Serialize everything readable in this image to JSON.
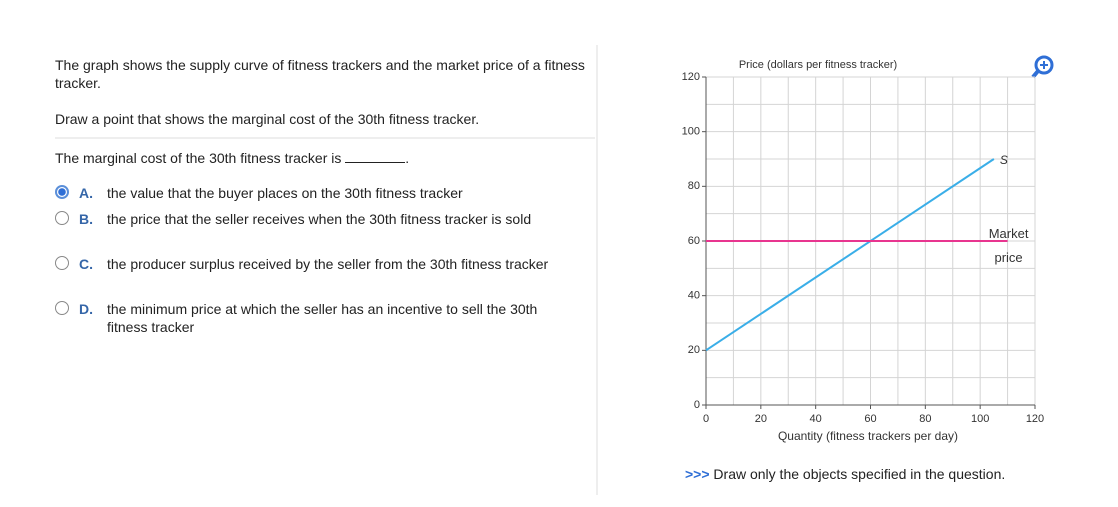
{
  "question": {
    "intro": "The graph shows the supply curve of fitness trackers and the market price of a fitness tracker.",
    "instruction": "Draw a point that shows the marginal cost of the 30th fitness tracker.",
    "prompt": "The marginal cost of the 30th fitness tracker is",
    "prompt_end": ".",
    "options": [
      {
        "letter": "A.",
        "text": "the value that the buyer places on the 30th fitness tracker",
        "selected": true
      },
      {
        "letter": "B.",
        "text": "the price that the seller receives when the 30th fitness tracker is sold",
        "selected": false
      },
      {
        "letter": "C.",
        "text": "the producer surplus received by the seller from the 30th fitness tracker",
        "selected": false
      },
      {
        "letter": "D.",
        "text": "the minimum price at which the seller has an incentive to sell the 30th fitness tracker",
        "selected": false
      }
    ]
  },
  "chart_data": {
    "type": "line",
    "y_label": "Price (dollars per fitness tracker)",
    "x_label": "Quantity (fitness trackers per day)",
    "xlim": [
      0,
      120
    ],
    "ylim": [
      0,
      120
    ],
    "xticks": [
      0,
      20,
      40,
      60,
      80,
      100,
      120
    ],
    "yticks": [
      0,
      20,
      40,
      60,
      80,
      100,
      120
    ],
    "grid": true,
    "series": [
      {
        "name": "S",
        "color": "#3aaee8",
        "x": [
          0,
          105
        ],
        "values": [
          20,
          90
        ]
      },
      {
        "name": "Market price",
        "color": "#e8358f",
        "x": [
          0,
          110
        ],
        "values": [
          60,
          60
        ]
      }
    ]
  },
  "footer": {
    "prefix": ">>>",
    "text": "Draw only the objects specified in the question."
  }
}
